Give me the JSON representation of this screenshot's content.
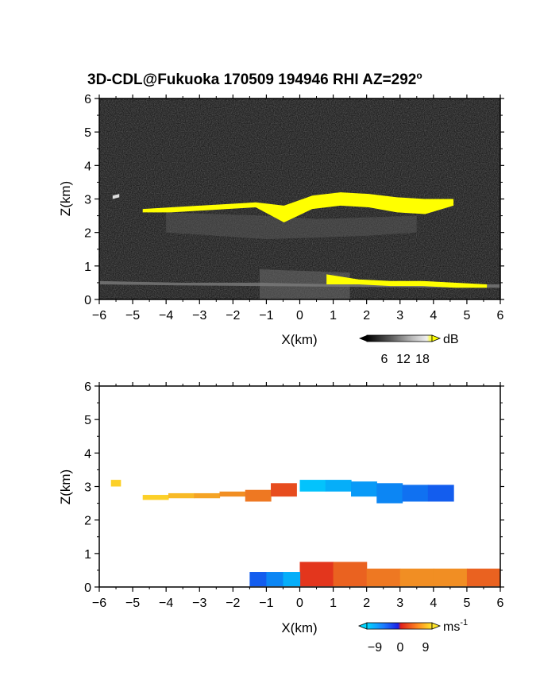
{
  "figure": {
    "title_main": "3D-CDL@Fukuoka 170509 194946 RHI AZ=292",
    "title_deg": "o"
  },
  "colors": {
    "background": "#ffffff",
    "panel_background_top": "#1f1f1f",
    "signal_highlight": "#ffff00",
    "velocity_negative": "#1c3fe0",
    "velocity_zero": "#d0291b",
    "velocity_positive": "#ffe02a"
  },
  "chart_data": [
    {
      "type": "heatmap",
      "quantity": "intensity",
      "title": "3D-CDL@Fukuoka 170509 194946 RHI AZ=292°",
      "xlabel": "X(km)",
      "ylabel": "Z(km)",
      "xlim": [
        -6,
        6
      ],
      "ylim": [
        0,
        6
      ],
      "xticks": [
        "-6",
        "-5",
        "-4",
        "-3",
        "-2",
        "-1",
        "0",
        "1",
        "2",
        "3",
        "4",
        "5",
        "6"
      ],
      "yticks": [
        "0",
        "1",
        "2",
        "3",
        "4",
        "5",
        "6"
      ],
      "colorbar": {
        "unit": "dB",
        "ticks": [
          "6",
          "12",
          "18"
        ]
      },
      "features": [
        {
          "layer": "cloud layer near 2.5-3 km",
          "x": [
            -4.7,
            4.6
          ],
          "z_top": [
            2.7,
            2.75,
            2.8,
            2.85,
            2.9,
            2.8,
            3.1,
            3.2,
            3.15,
            3.05,
            3.0,
            3.0
          ],
          "z_bottom": [
            2.6,
            2.6,
            2.65,
            2.7,
            2.75,
            2.3,
            2.7,
            2.8,
            2.75,
            2.6,
            2.55,
            2.8
          ]
        },
        {
          "layer": "low layer near 0.5 km",
          "x": [
            0.8,
            5.6
          ],
          "z_top": [
            0.75,
            0.6,
            0.55,
            0.55,
            0.5,
            0.45
          ],
          "z_bottom": [
            0.45,
            0.45,
            0.4,
            0.4,
            0.35,
            0.35
          ]
        },
        {
          "layer": "small echo",
          "x": [
            -5.6,
            -5.4
          ],
          "z": [
            3.1,
            3.15
          ]
        }
      ]
    },
    {
      "type": "heatmap",
      "quantity": "radial velocity",
      "xlabel": "X(km)",
      "ylabel": "Z(km)",
      "xlim": [
        -6,
        6
      ],
      "ylim": [
        0,
        6
      ],
      "xticks": [
        "-6",
        "-5",
        "-4",
        "-3",
        "-2",
        "-1",
        "0",
        "1",
        "2",
        "3",
        "4",
        "5",
        "6"
      ],
      "yticks": [
        "0",
        "1",
        "2",
        "3",
        "4",
        "5",
        "6"
      ],
      "colorbar": {
        "unit": "ms",
        "unit_exp": "-1",
        "ticks": [
          "-9",
          "0",
          "9"
        ]
      },
      "features": [
        {
          "layer": "cloud layer (positive velocities, yellow/orange)",
          "x": [
            -4.7,
            -0.1
          ],
          "velocity": [
            8,
            7,
            6,
            5,
            4,
            2
          ]
        },
        {
          "layer": "cloud layer (negative velocities, blue/cyan)",
          "x": [
            0.0,
            4.6
          ],
          "velocity": [
            -8,
            -7,
            -6,
            -5,
            -4,
            -3
          ]
        },
        {
          "layer": "low layer (positive velocities, orange/red)",
          "x": [
            0.0,
            6.0
          ],
          "velocity": [
            1,
            3,
            4,
            5,
            5,
            3
          ]
        },
        {
          "layer": "low layer (negative velocities, blue/cyan)",
          "x": [
            -1.5,
            0.0
          ],
          "velocity": [
            -3,
            -5,
            -7
          ]
        }
      ]
    }
  ]
}
